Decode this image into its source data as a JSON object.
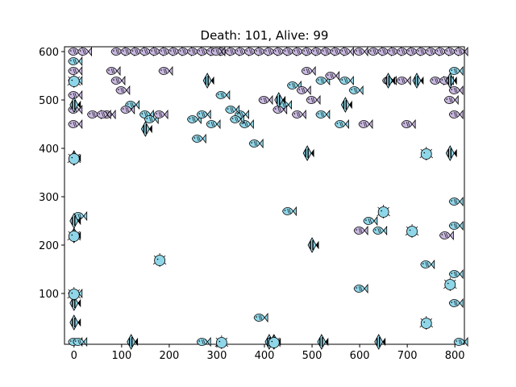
{
  "chart_data": {
    "type": "scatter",
    "title": "Death: 101, Alive: 99",
    "xlabel": "",
    "ylabel": "",
    "xlim": [
      -20,
      820
    ],
    "ylim": [
      -5,
      610
    ],
    "xticks": [
      0,
      100,
      200,
      300,
      400,
      500,
      600,
      700,
      800
    ],
    "yticks": [
      100,
      200,
      300,
      400,
      500,
      600
    ],
    "grid": false,
    "legend": "none",
    "colors": {
      "alive_fish": "#8fd6e8",
      "dead_fish": "#c8b8e0",
      "angelfish": "#8fd6e8",
      "pufferfish": "#8fd6e8",
      "outline": "#000000"
    },
    "series": [
      {
        "kind": "alive-fish",
        "points": [
          [
            0,
            100
          ],
          [
            0,
            540
          ],
          [
            0,
            580
          ],
          [
            10,
            260
          ],
          [
            0,
            0
          ],
          [
            10,
            0
          ],
          [
            120,
            490
          ],
          [
            150,
            470
          ],
          [
            160,
            460
          ],
          [
            250,
            460
          ],
          [
            270,
            470
          ],
          [
            290,
            450
          ],
          [
            310,
            510
          ],
          [
            350,
            470
          ],
          [
            360,
            450
          ],
          [
            340,
            460
          ],
          [
            380,
            410
          ],
          [
            390,
            50
          ],
          [
            260,
            420
          ],
          [
            270,
            0
          ],
          [
            330,
            480
          ],
          [
            440,
            490
          ],
          [
            450,
            270
          ],
          [
            460,
            530
          ],
          [
            520,
            540
          ],
          [
            560,
            450
          ],
          [
            570,
            540
          ],
          [
            590,
            520
          ],
          [
            600,
            110
          ],
          [
            620,
            250
          ],
          [
            640,
            230
          ],
          [
            740,
            160
          ],
          [
            800,
            80
          ],
          [
            800,
            140
          ],
          [
            800,
            240
          ],
          [
            800,
            290
          ],
          [
            800,
            560
          ],
          [
            810,
            0
          ],
          [
            520,
            470
          ]
        ]
      },
      {
        "kind": "dead-fish",
        "points": [
          [
            0,
            450
          ],
          [
            0,
            480
          ],
          [
            0,
            510
          ],
          [
            0,
            560
          ],
          [
            0,
            600
          ],
          [
            20,
            600
          ],
          [
            40,
            470
          ],
          [
            70,
            470
          ],
          [
            90,
            600
          ],
          [
            110,
            600
          ],
          [
            130,
            600
          ],
          [
            150,
            600
          ],
          [
            170,
            600
          ],
          [
            190,
            600
          ],
          [
            210,
            600
          ],
          [
            230,
            600
          ],
          [
            250,
            600
          ],
          [
            270,
            600
          ],
          [
            290,
            600
          ],
          [
            310,
            600
          ],
          [
            330,
            600
          ],
          [
            350,
            600
          ],
          [
            370,
            600
          ],
          [
            390,
            600
          ],
          [
            410,
            600
          ],
          [
            430,
            600
          ],
          [
            450,
            600
          ],
          [
            470,
            600
          ],
          [
            490,
            600
          ],
          [
            510,
            600
          ],
          [
            530,
            600
          ],
          [
            550,
            600
          ],
          [
            570,
            600
          ],
          [
            600,
            600
          ],
          [
            630,
            600
          ],
          [
            650,
            600
          ],
          [
            670,
            600
          ],
          [
            690,
            600
          ],
          [
            710,
            600
          ],
          [
            730,
            600
          ],
          [
            750,
            600
          ],
          [
            770,
            600
          ],
          [
            790,
            600
          ],
          [
            810,
            600
          ],
          [
            80,
            560
          ],
          [
            100,
            520
          ],
          [
            110,
            480
          ],
          [
            180,
            470
          ],
          [
            190,
            560
          ],
          [
            300,
            600
          ],
          [
            400,
            500
          ],
          [
            430,
            480
          ],
          [
            470,
            470
          ],
          [
            480,
            520
          ],
          [
            490,
            560
          ],
          [
            500,
            500
          ],
          [
            540,
            550
          ],
          [
            610,
            450
          ],
          [
            660,
            540
          ],
          [
            690,
            540
          ],
          [
            700,
            450
          ],
          [
            760,
            540
          ],
          [
            780,
            540
          ],
          [
            790,
            500
          ],
          [
            800,
            470
          ],
          [
            800,
            520
          ],
          [
            780,
            220
          ],
          [
            600,
            230
          ],
          [
            60,
            470
          ],
          [
            90,
            540
          ]
        ]
      },
      {
        "kind": "angelfish",
        "points": [
          [
            0,
            490
          ],
          [
            0,
            380
          ],
          [
            0,
            250
          ],
          [
            0,
            220
          ],
          [
            0,
            80
          ],
          [
            0,
            40
          ],
          [
            120,
            0
          ],
          [
            150,
            440
          ],
          [
            280,
            540
          ],
          [
            420,
            0
          ],
          [
            430,
            500
          ],
          [
            490,
            390
          ],
          [
            500,
            200
          ],
          [
            520,
            0
          ],
          [
            570,
            490
          ],
          [
            640,
            0
          ],
          [
            660,
            540
          ],
          [
            720,
            540
          ],
          [
            790,
            390
          ],
          [
            790,
            540
          ],
          [
            410,
            0
          ]
        ]
      },
      {
        "kind": "pufferfish",
        "points": [
          [
            0,
            540
          ],
          [
            0,
            380
          ],
          [
            0,
            100
          ],
          [
            0,
            220
          ],
          [
            180,
            170
          ],
          [
            310,
            0
          ],
          [
            650,
            270
          ],
          [
            710,
            230
          ],
          [
            740,
            390
          ],
          [
            740,
            40
          ],
          [
            790,
            120
          ],
          [
            420,
            0
          ]
        ]
      }
    ]
  }
}
